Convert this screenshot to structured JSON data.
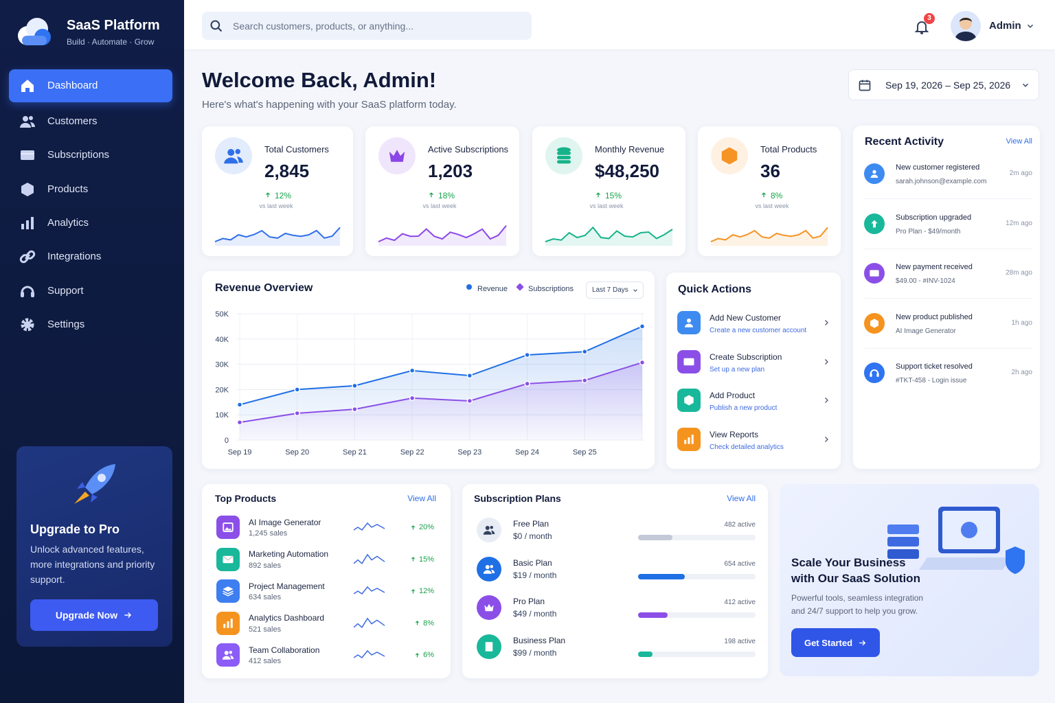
{
  "sidebar": {
    "brand": "SaaS Platform",
    "tagline": "Build · Automate · Grow",
    "nav": [
      "Dashboard",
      "Customers",
      "Subscriptions",
      "Products",
      "Analytics",
      "Integrations",
      "Support",
      "Settings"
    ],
    "promo": {
      "title": "Upgrade to Pro",
      "text": "Unlock advanced features, more integrations and priority support.",
      "button": "Upgrade Now"
    }
  },
  "header": {
    "search_placeholder": "Search customers, products, or anything...",
    "notifications": 3,
    "user": "Admin"
  },
  "welcome": {
    "title": "Welcome Back, Admin!",
    "subtitle": "Here's what's happening with your SaaS platform today.",
    "date_range": "Sep 19, 2026 – Sep 25, 2026"
  },
  "stats": [
    {
      "label": "Total Customers",
      "value": "2,845",
      "change": "12%",
      "note": "vs last week",
      "color": "#2f6fe8"
    },
    {
      "label": "Active Subscriptions",
      "value": "1,203",
      "change": "18%",
      "note": "vs last week",
      "color": "#8b46e8"
    },
    {
      "label": "Monthly Revenue",
      "value": "$48,250",
      "change": "15%",
      "note": "vs last week",
      "color": "#16b38a"
    },
    {
      "label": "Total Products",
      "value": "36",
      "change": "8%",
      "note": "vs last week",
      "color": "#f59324"
    }
  ],
  "chart_data": {
    "type": "line",
    "title": "Revenue Overview",
    "filter": "Last 7 Days",
    "categories": [
      "Sep 19",
      "Sep 20",
      "Sep 21",
      "Sep 22",
      "Sep 23",
      "Sep 24",
      "Sep 25",
      null
    ],
    "series": [
      {
        "name": "Revenue",
        "color": "#1f6fe5",
        "values": [
          14000,
          20000,
          21500,
          27500,
          25500,
          33700,
          35000,
          45000
        ]
      },
      {
        "name": "Subscriptions",
        "color": "#8a4fe6",
        "values": [
          7000,
          10600,
          12200,
          16600,
          15500,
          22300,
          23600,
          30700
        ]
      }
    ],
    "ylim": [
      0,
      50000
    ],
    "yticks": [
      0,
      {
        "value": 10000,
        "label": "10K"
      },
      {
        "value": 20000,
        "label": "20K"
      },
      {
        "value": 30000,
        "label": "30K"
      },
      {
        "value": 40000,
        "label": "40K"
      },
      {
        "value": 50000,
        "label": "50K"
      }
    ],
    "grid": true
  },
  "quick_actions": {
    "title": "Quick Actions",
    "items": [
      {
        "title": "Add New Customer",
        "subtitle": "Create a new customer account",
        "color": "#3d8bf0"
      },
      {
        "title": "Create Subscription",
        "subtitle": "Set up a new plan",
        "color": "#8b4fe8"
      },
      {
        "title": "Add Product",
        "subtitle": "Publish a new product",
        "color": "#19b89a"
      },
      {
        "title": "View Reports",
        "subtitle": "Check detailed analytics",
        "color": "#f5931f"
      }
    ]
  },
  "recent_activity": {
    "title": "Recent Activity",
    "view_all": "View All",
    "items": [
      {
        "title": "New customer registered",
        "detail": "sarah.johnson@example.com",
        "time": "2m ago",
        "color": "#3d8bf0"
      },
      {
        "title": "Subscription upgraded",
        "detail": "Pro Plan - $49/month",
        "time": "12m ago",
        "color": "#19b89a"
      },
      {
        "title": "New payment received",
        "detail": "$49.00 - #INV-1024",
        "time": "28m ago",
        "color": "#8b4fe8"
      },
      {
        "title": "New product published",
        "detail": "AI Image Generator",
        "time": "1h ago",
        "color": "#f5931f"
      },
      {
        "title": "Support ticket resolved",
        "detail": "#TKT-458 - Login issue",
        "time": "2h ago",
        "color": "#2f74f0"
      }
    ]
  },
  "top_products": {
    "title": "Top Products",
    "view_all": "View All",
    "items": [
      {
        "name": "AI Image Generator",
        "sales": "1,245 sales",
        "change": "20%",
        "color": "#8b4fe8"
      },
      {
        "name": "Marketing Automation",
        "sales": "892 sales",
        "change": "15%",
        "color": "#19b89a"
      },
      {
        "name": "Project Management",
        "sales": "634 sales",
        "change": "12%",
        "color": "#3d7ef0"
      },
      {
        "name": "Analytics Dashboard",
        "sales": "521 sales",
        "change": "8%",
        "color": "#f5931f"
      },
      {
        "name": "Team Collaboration",
        "sales": "412 sales",
        "change": "6%",
        "color": "#8b5cf6"
      }
    ]
  },
  "subscription_plans": {
    "title": "Subscription Plans",
    "view_all": "View All",
    "unit": "active",
    "items": [
      {
        "name": "Free Plan",
        "price": "$0",
        "period": "/ month",
        "active": 482,
        "color": "#c3c9d8"
      },
      {
        "name": "Basic Plan",
        "price": "$19",
        "period": "/ month",
        "active": 654,
        "color": "#1f6fe5"
      },
      {
        "name": "Pro Plan",
        "price": "$49",
        "period": "/ month",
        "active": 412,
        "color": "#8b4fe8"
      },
      {
        "name": "Business Plan",
        "price": "$99",
        "period": "/ month",
        "active": 198,
        "color": "#19b89a"
      }
    ]
  },
  "banner": {
    "title": "Scale Your Business with Our SaaS Solution",
    "text": "Powerful tools, seamless integration and 24/7 support to help you grow.",
    "button": "Get Started"
  }
}
